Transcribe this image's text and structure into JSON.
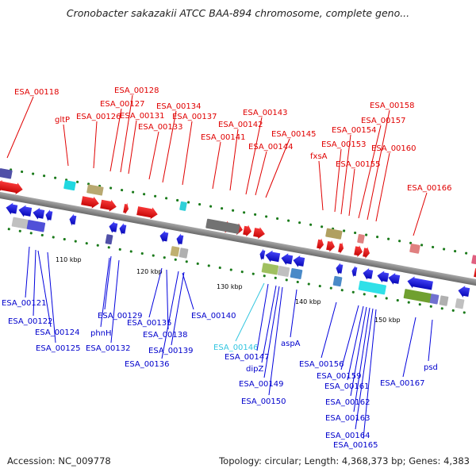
{
  "title": "Cronobacter sakazakii ATCC BAA-894 chromosome, complete geno...",
  "accession": "Accession: NC_009778",
  "topology": "Topology: circular; Length: 4,368,373 bp; Genes: 4,383",
  "colors": {
    "forward": "#e00000",
    "reverse": "#0000dd",
    "backbone": "#808080",
    "cyan_label": "#33c6e0",
    "tick": "#1a7a1a"
  },
  "scale_labels": [
    "110 kbp",
    "120 kbp",
    "130 kbp",
    "140 kbp",
    "150 kbp"
  ],
  "forward_labels": [
    "ESA_00118",
    "gltP",
    "ESA_00126",
    "ESA_00127",
    "ESA_00128",
    "ESA_00131",
    "ESA_00133",
    "ESA_00134",
    "ESA_00137",
    "ESA_00141",
    "ESA_00142",
    "ESA_00143",
    "ESA_00144",
    "ESA_00145",
    "fxsA",
    "ESA_00153",
    "ESA_00154",
    "ESA_00155",
    "ESA_00157",
    "ESA_00158",
    "ESA_00160",
    "ESA_00166"
  ],
  "reverse_labels": [
    "ESA_00121",
    "ESA_00122",
    "ESA_00124",
    "ESA_00125",
    "ESA_00129",
    "phnH",
    "ESA_00132",
    "ESA_00135",
    "ESA_00136",
    "ESA_00138",
    "ESA_00139",
    "ESA_00140",
    "ESA_00146",
    "ESA_00147",
    "dipZ",
    "ESA_00149",
    "ESA_00150",
    "aspA",
    "ESA_00156",
    "ESA_00159",
    "ESA_00161",
    "ESA_00162",
    "ESA_00163",
    "ESA_00164",
    "ESA_00165",
    "ESA_00167",
    "psd"
  ]
}
